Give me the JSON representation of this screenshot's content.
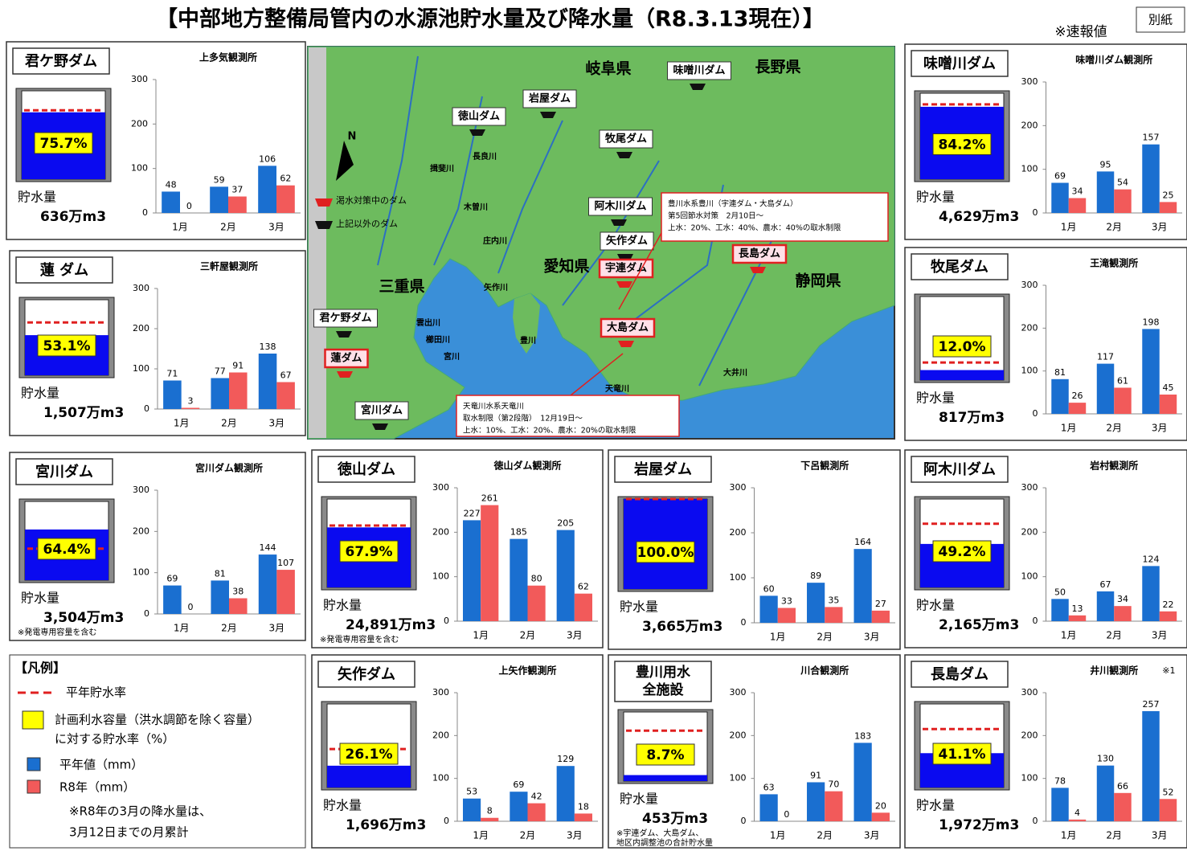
{
  "title": "【中部地方整備局管内の水源池貯水量及び降水量（R8.3.13現在）】",
  "note": "※速報値",
  "badge": "別紙",
  "map": {
    "prefectures": [
      "岐阜県",
      "長野県",
      "三重県",
      "愛知県",
      "静岡県"
    ],
    "dams": [
      {
        "name": "徳山ダム",
        "drought": false
      },
      {
        "name": "岩屋ダム",
        "drought": false
      },
      {
        "name": "味噌川ダム",
        "drought": false
      },
      {
        "name": "牧尾ダム",
        "drought": false
      },
      {
        "name": "阿木川ダム",
        "drought": false
      },
      {
        "name": "矢作ダム",
        "drought": false
      },
      {
        "name": "宇連ダム",
        "drought": true
      },
      {
        "name": "長島ダム",
        "drought": true
      },
      {
        "name": "大島ダム",
        "drought": true
      },
      {
        "name": "君ケ野ダム",
        "drought": false
      },
      {
        "name": "蓮ダム",
        "drought": true
      },
      {
        "name": "宮川ダム",
        "drought": false
      }
    ],
    "rivers": [
      "長良川",
      "揖斐川",
      "木曽川",
      "庄内川",
      "矢作川",
      "豊川",
      "雲出川",
      "櫛田川",
      "宮川",
      "天竜川",
      "大井川"
    ],
    "compass": "N",
    "legend": [
      "渇水対策中のダム",
      "上記以外のダム"
    ],
    "callouts": [
      [
        "豊川水系豊川（宇連ダム・大島ダム）",
        "第5回節水対策　2月10日～",
        "上水：20%、工水：40%、農水：40%の取水制限"
      ],
      [
        "天竜川水系天竜川",
        "取水制限（第2段階）　12月19日～",
        "上水：10%、工水：20%、農水：20%の取水制限"
      ]
    ]
  },
  "legend": {
    "title": "【凡例】",
    "normal_rate": "平年貯水率",
    "rate": [
      "計画利水容量（洪水調節を除く容量）",
      "に対する貯水率（%）"
    ],
    "series": [
      "平年値（mm）",
      "R8年（mm）"
    ],
    "note": [
      "※R8年の3月の降水量は、",
      "3月12日までの月累計"
    ]
  },
  "chart_data": [
    {
      "type": "bar",
      "name": "君ケ野ダム",
      "station": "上多気観測所",
      "rate": 75.7,
      "rate_label": "75.7%",
      "normal_rate": 78,
      "storage_label": "貯水量",
      "storage": "636万m3",
      "categories": [
        "1月",
        "2月",
        "3月"
      ],
      "series": [
        {
          "color": "#1a6fd0",
          "values": [
            48,
            59,
            106
          ]
        },
        {
          "color": "#f25a5a",
          "values": [
            0,
            37,
            62
          ]
        }
      ],
      "ylim": [
        0,
        300
      ],
      "yticks": [
        0,
        100,
        200,
        300
      ]
    },
    {
      "type": "bar",
      "name": "蓮 ダム",
      "station": "三軒屋観測所",
      "rate": 53.1,
      "rate_label": "53.1%",
      "normal_rate": 70,
      "storage_label": "貯水量",
      "storage": "1,507万m3",
      "categories": [
        "1月",
        "2月",
        "3月"
      ],
      "series": [
        {
          "color": "#1a6fd0",
          "values": [
            71,
            77,
            138
          ]
        },
        {
          "color": "#f25a5a",
          "values": [
            3,
            91,
            67
          ]
        }
      ],
      "ylim": [
        0,
        300
      ],
      "yticks": [
        0,
        100,
        200,
        300
      ]
    },
    {
      "type": "bar",
      "name": "味噌川ダム",
      "station": "味噌川ダム観測所",
      "rate": 84.2,
      "rate_label": "84.2%",
      "normal_rate": 87,
      "storage_label": "貯水量",
      "storage": "4,629万m3",
      "categories": [
        "1月",
        "2月",
        "3月"
      ],
      "series": [
        {
          "color": "#1a6fd0",
          "values": [
            69,
            95,
            157
          ]
        },
        {
          "color": "#f25a5a",
          "values": [
            34,
            54,
            25
          ]
        }
      ],
      "ylim": [
        0,
        300
      ],
      "yticks": [
        0,
        100,
        200,
        300
      ]
    },
    {
      "type": "bar",
      "name": "牧尾ダム",
      "station": "王滝観測所",
      "rate": 12.0,
      "rate_label": "12.0%",
      "normal_rate": 21,
      "storage_label": "貯水量",
      "storage": "817万m3",
      "categories": [
        "1月",
        "2月",
        "3月"
      ],
      "series": [
        {
          "color": "#1a6fd0",
          "values": [
            81,
            117,
            198
          ]
        },
        {
          "color": "#f25a5a",
          "values": [
            26,
            61,
            45
          ]
        }
      ],
      "ylim": [
        0,
        300
      ],
      "yticks": [
        0,
        100,
        200,
        300
      ]
    },
    {
      "type": "bar",
      "name": "宮川ダム",
      "station": "宮川ダム観測所",
      "rate": 64.4,
      "rate_label": "64.4%",
      "normal_rate": 40,
      "storage_label": "貯水量",
      "storage": "3,504万m3",
      "notes": [
        "※発電専用容量を含む"
      ],
      "categories": [
        "1月",
        "2月",
        "3月"
      ],
      "series": [
        {
          "color": "#1a6fd0",
          "values": [
            69,
            81,
            144
          ]
        },
        {
          "color": "#f25a5a",
          "values": [
            0,
            38,
            107
          ]
        }
      ],
      "ylim": [
        0,
        300
      ],
      "yticks": [
        0,
        100,
        200,
        300
      ]
    },
    {
      "type": "bar",
      "name": "徳山ダム",
      "station": "徳山ダム観測所",
      "rate": 67.9,
      "rate_label": "67.9%",
      "normal_rate": 70,
      "storage_label": "貯水量",
      "storage": "24,891万m3",
      "notes": [
        "※発電専用容量を含む"
      ],
      "categories": [
        "1月",
        "2月",
        "3月"
      ],
      "series": [
        {
          "color": "#1a6fd0",
          "values": [
            227,
            185,
            205
          ]
        },
        {
          "color": "#f25a5a",
          "values": [
            261,
            80,
            62
          ]
        }
      ],
      "ylim": [
        0,
        300
      ],
      "yticks": [
        0,
        100,
        200,
        300
      ]
    },
    {
      "type": "bar",
      "name": "岩屋ダム",
      "station": "下呂観測所",
      "rate": 100.0,
      "rate_label": "100.0%",
      "normal_rate": 100,
      "storage_label": "貯水量",
      "storage": "3,665万m3",
      "categories": [
        "1月",
        "2月",
        "3月"
      ],
      "series": [
        {
          "color": "#1a6fd0",
          "values": [
            60,
            89,
            164
          ]
        },
        {
          "color": "#f25a5a",
          "values": [
            33,
            35,
            27
          ]
        }
      ],
      "ylim": [
        0,
        300
      ],
      "yticks": [
        0,
        100,
        200,
        300
      ]
    },
    {
      "type": "bar",
      "name": "阿木川ダム",
      "station": "岩村観測所",
      "rate": 49.2,
      "rate_label": "49.2%",
      "normal_rate": 72,
      "storage_label": "貯水量",
      "storage": "2,165万m3",
      "categories": [
        "1月",
        "2月",
        "3月"
      ],
      "series": [
        {
          "color": "#1a6fd0",
          "values": [
            50,
            67,
            124
          ]
        },
        {
          "color": "#f25a5a",
          "values": [
            13,
            34,
            22
          ]
        }
      ],
      "ylim": [
        0,
        300
      ],
      "yticks": [
        0,
        100,
        200,
        300
      ]
    },
    {
      "type": "bar",
      "name": "矢作ダム",
      "station": "上矢作観測所",
      "rate": 26.1,
      "rate_label": "26.1%",
      "normal_rate": 46,
      "storage_label": "貯水量",
      "storage": "1,696万m3",
      "categories": [
        "1月",
        "2月",
        "3月"
      ],
      "series": [
        {
          "color": "#1a6fd0",
          "values": [
            53,
            69,
            129
          ]
        },
        {
          "color": "#f25a5a",
          "values": [
            8,
            42,
            18
          ]
        }
      ],
      "ylim": [
        0,
        300
      ],
      "yticks": [
        0,
        100,
        200,
        300
      ]
    },
    {
      "type": "bar",
      "name": [
        "豊川用水",
        "全施設"
      ],
      "station": "川合観測所",
      "rate": 8.7,
      "rate_label": "8.7%",
      "normal_rate": 73,
      "storage_label": "貯水量",
      "storage": "453万m3",
      "notes": [
        "※宇連ダム、大島ダム、",
        "地区内調整池の合計貯水量"
      ],
      "categories": [
        "1月",
        "2月",
        "3月"
      ],
      "series": [
        {
          "color": "#1a6fd0",
          "values": [
            63,
            91,
            183
          ]
        },
        {
          "color": "#f25a5a",
          "values": [
            0,
            70,
            20
          ]
        }
      ],
      "ylim": [
        0,
        300
      ],
      "yticks": [
        0,
        100,
        200,
        300
      ]
    },
    {
      "type": "bar",
      "name": "長島ダム",
      "station": "井川観測所",
      "station_note": "※1",
      "rate": 41.1,
      "rate_label": "41.1%",
      "normal_rate": 70,
      "storage_label": "貯水量",
      "storage": "1,972万m3",
      "categories": [
        "1月",
        "2月",
        "3月"
      ],
      "series": [
        {
          "color": "#1a6fd0",
          "values": [
            78,
            130,
            257
          ]
        },
        {
          "color": "#f25a5a",
          "values": [
            4,
            66,
            52
          ]
        }
      ],
      "ylim": [
        0,
        300
      ],
      "yticks": [
        0,
        100,
        200,
        300
      ]
    }
  ]
}
